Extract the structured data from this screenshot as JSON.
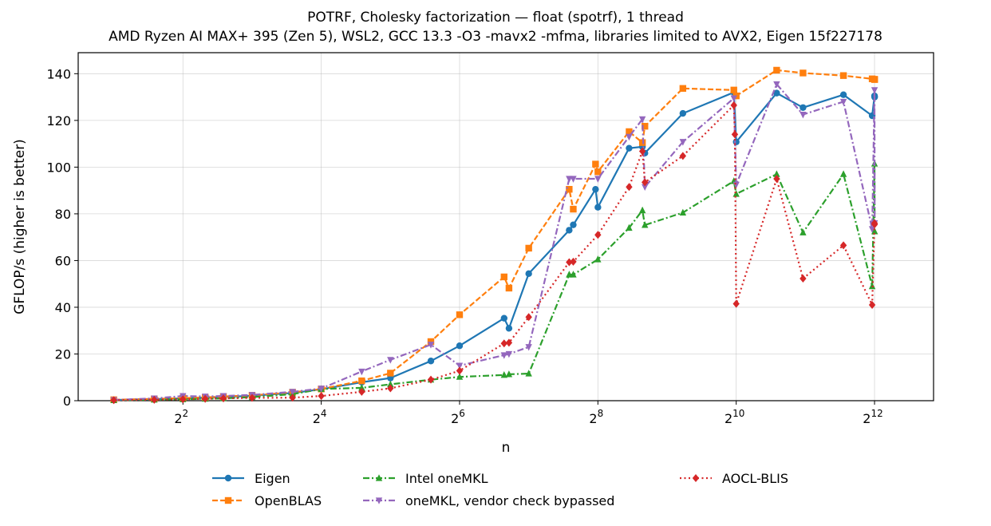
{
  "title": "POTRF, Cholesky factorization — float (spotrf), 1 thread",
  "subtitle": "AMD Ryzen AI MAX+ 395 (Zen 5), WSL2, GCC 13.3 -O3 -mavx2 -mfma, libraries limited to AVX2, Eigen 15f227178",
  "chart_data": {
    "type": "line",
    "title": "POTRF, Cholesky factorization — float (spotrf), 1 thread",
    "subtitle": "AMD Ryzen AI MAX+ 395 (Zen 5), WSL2, GCC 13.3 -O3 -mavx2 -mfma, libraries limited to AVX2, Eigen 15f227178",
    "xlabel": "n",
    "ylabel": "GFLOP/s (higher is better)",
    "xscale": "log2",
    "xlim": [
      1.4,
      7400
    ],
    "ylim": [
      0,
      149
    ],
    "xticks": [
      {
        "base": "2",
        "exp": "2",
        "value": 4
      },
      {
        "base": "2",
        "exp": "4",
        "value": 16
      },
      {
        "base": "2",
        "exp": "6",
        "value": 64
      },
      {
        "base": "2",
        "exp": "8",
        "value": 256
      },
      {
        "base": "2",
        "exp": "10",
        "value": 1024
      },
      {
        "base": "2",
        "exp": "12",
        "value": 4096
      }
    ],
    "yticks": [
      "0",
      "20",
      "40",
      "60",
      "80",
      "100",
      "120",
      "140"
    ],
    "grid": true,
    "legend_position": "bottom-center",
    "series": [
      {
        "name": "Eigen",
        "color": "#1f77b4",
        "marker": "circle",
        "dash": "solid",
        "x": [
          2,
          3,
          4,
          5,
          6,
          8,
          12,
          16,
          24,
          32,
          48,
          64,
          100,
          105,
          128,
          192,
          200,
          250,
          256,
          350,
          400,
          410,
          600,
          1000,
          1024,
          1536,
          2000,
          3000,
          4000,
          4096,
          4100
        ],
        "y": [
          0.3,
          0.7,
          1.0,
          1.3,
          1.6,
          2.1,
          3.3,
          4.9,
          7.9,
          9.7,
          17.0,
          23.5,
          35.3,
          31.0,
          54.4,
          73.0,
          75.3,
          90.5,
          82.8,
          108.1,
          108.7,
          106.0,
          123.0,
          132.0,
          110.8,
          131.7,
          125.5,
          131.0,
          122.0,
          130.5,
          130.0
        ]
      },
      {
        "name": "OpenBLAS",
        "color": "#ff7f0e",
        "marker": "square",
        "dash": "dashed",
        "x": [
          2,
          3,
          4,
          5,
          6,
          8,
          12,
          16,
          24,
          32,
          48,
          64,
          100,
          105,
          128,
          192,
          200,
          250,
          256,
          350,
          400,
          410,
          600,
          1000,
          1024,
          1536,
          2000,
          3000,
          4000,
          4096,
          4100
        ],
        "y": [
          0.4,
          0.8,
          1.1,
          1.4,
          1.8,
          2.3,
          3.6,
          5.0,
          8.5,
          11.8,
          25.3,
          36.8,
          53.0,
          48.2,
          65.3,
          90.5,
          82.0,
          101.3,
          98.0,
          115.2,
          110.5,
          117.5,
          133.7,
          133.0,
          130.5,
          141.5,
          140.3,
          139.2,
          137.8,
          137.6,
          137.5
        ]
      },
      {
        "name": "Intel oneMKL",
        "color": "#2ca02c",
        "marker": "triangle-up",
        "dash": "dashdot",
        "x": [
          2,
          3,
          4,
          5,
          6,
          8,
          12,
          16,
          24,
          32,
          48,
          64,
          100,
          105,
          128,
          192,
          200,
          256,
          350,
          400,
          410,
          600,
          1000,
          1024,
          1536,
          2000,
          3000,
          4000,
          4096,
          4100
        ],
        "y": [
          0.2,
          0.4,
          0.6,
          0.8,
          1.0,
          1.5,
          2.8,
          5.0,
          5.5,
          7.0,
          9.0,
          10.2,
          11.0,
          11.3,
          11.6,
          54.0,
          54.0,
          60.5,
          74.0,
          81.5,
          75.2,
          80.5,
          94.0,
          88.5,
          97.0,
          72.0,
          97.0,
          49.0,
          101.5,
          72.5
        ]
      },
      {
        "name": "oneMKL, vendor check bypassed",
        "color": "#9467bd",
        "marker": "triangle-down",
        "dash": "dashdot",
        "x": [
          2,
          3,
          4,
          5,
          6,
          8,
          12,
          16,
          24,
          32,
          48,
          64,
          100,
          105,
          128,
          192,
          200,
          256,
          350,
          400,
          410,
          600,
          1000,
          1024,
          1536,
          2000,
          3000,
          4000,
          4096,
          4100
        ],
        "y": [
          0.3,
          1.0,
          2.0,
          1.8,
          2.0,
          2.5,
          3.8,
          5.2,
          12.5,
          17.5,
          24.0,
          15.0,
          19.5,
          20.0,
          23.0,
          95.0,
          95.0,
          95.0,
          113.0,
          120.5,
          91.5,
          110.8,
          129.5,
          92.5,
          135.5,
          122.5,
          128.0,
          73.5,
          133.0,
          76.0
        ]
      },
      {
        "name": "AOCL-BLIS",
        "color": "#d62728",
        "marker": "diamond",
        "dash": "dotted",
        "x": [
          2,
          3,
          4,
          5,
          6,
          8,
          12,
          16,
          24,
          32,
          48,
          64,
          100,
          105,
          128,
          192,
          200,
          256,
          350,
          400,
          410,
          600,
          1000,
          1010,
          1024,
          1536,
          2000,
          3000,
          4000,
          4096,
          4100
        ],
        "y": [
          0.2,
          0.4,
          0.6,
          0.8,
          1.0,
          1.2,
          1.3,
          2.0,
          3.8,
          5.3,
          9.0,
          12.8,
          24.5,
          24.8,
          35.8,
          59.3,
          59.5,
          71.0,
          91.5,
          106.8,
          93.5,
          104.8,
          126.5,
          114.0,
          41.5,
          95.0,
          52.3,
          66.5,
          41.0,
          76.0,
          75.5
        ]
      }
    ]
  }
}
